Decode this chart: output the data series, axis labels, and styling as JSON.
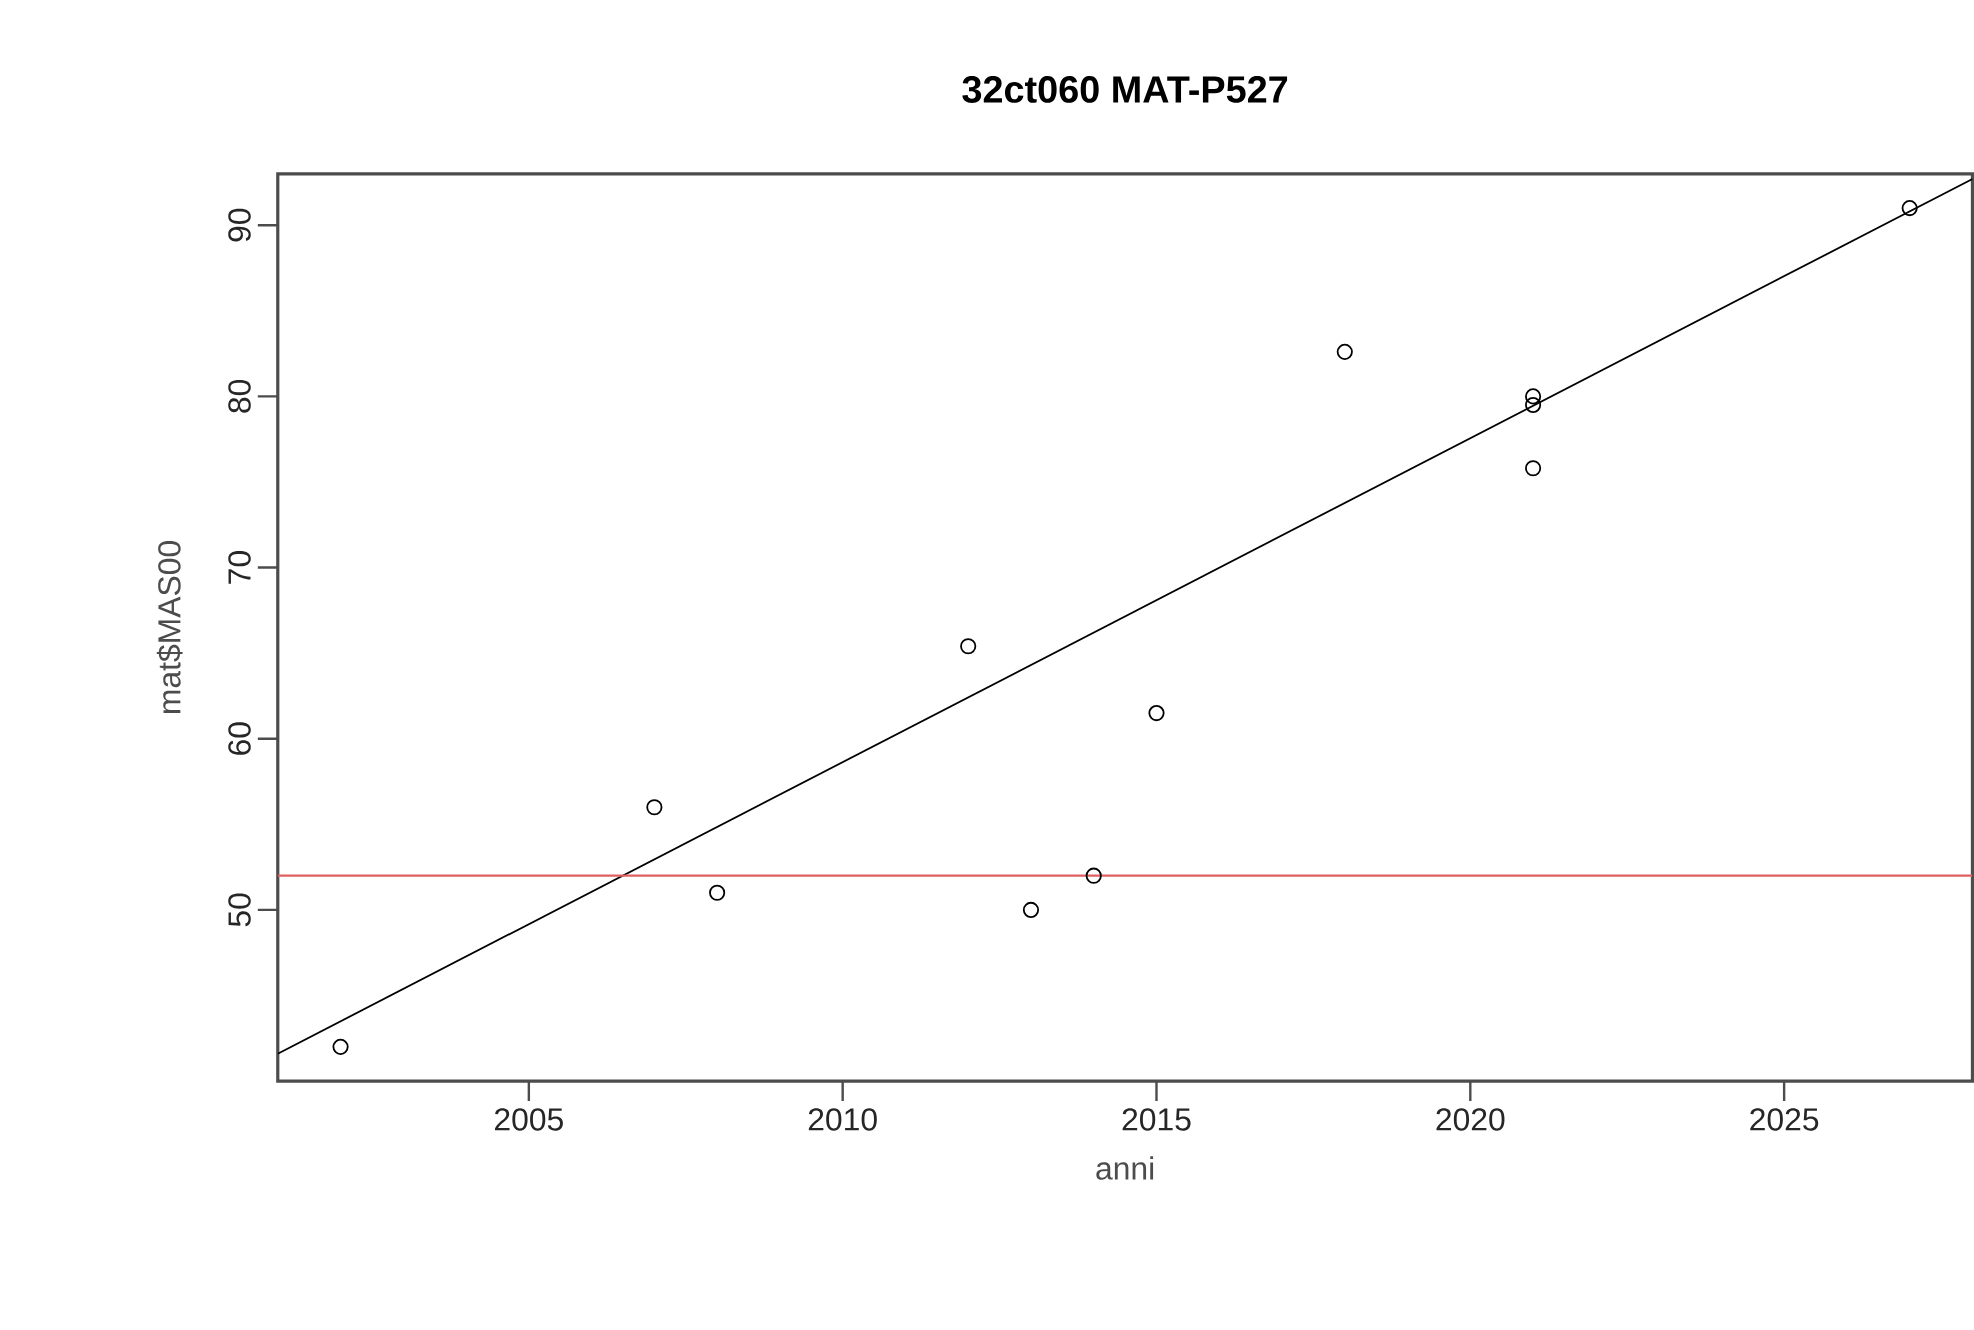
{
  "chart_data": {
    "type": "scatter",
    "title": "32ct060 MAT-P527",
    "xlabel": "anni",
    "ylabel": "mat$MAS00",
    "xlim": [
      2001,
      2028
    ],
    "ylim": [
      40,
      93
    ],
    "xticks": [
      2005,
      2010,
      2015,
      2020,
      2025
    ],
    "yticks": [
      50,
      60,
      70,
      80,
      90
    ],
    "grid": false,
    "x": [
      2002,
      2007,
      2008,
      2012,
      2013,
      2014,
      2015,
      2018,
      2021,
      2021,
      2021,
      2027
    ],
    "series": [
      {
        "marker": "circle",
        "color": "#000000",
        "values": [
          42,
          56,
          51,
          65.4,
          50,
          52,
          61.5,
          82.6,
          79.5,
          80,
          75.8,
          91
        ]
      },
      {
        "type": "line",
        "marker": "none",
        "color": "#000000",
        "x": [
          2001,
          2028
        ],
        "values": [
          41.6,
          92.7
        ]
      }
    ],
    "ref_lines": [
      {
        "axis": "y",
        "value": 52,
        "color": "#e06060"
      }
    ]
  }
}
